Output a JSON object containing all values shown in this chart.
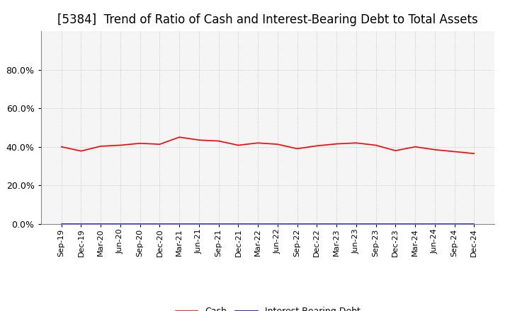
{
  "title": "[5384]  Trend of Ratio of Cash and Interest-Bearing Debt to Total Assets",
  "x_labels": [
    "Sep-19",
    "Dec-19",
    "Mar-20",
    "Jun-20",
    "Sep-20",
    "Dec-20",
    "Mar-21",
    "Jun-21",
    "Sep-21",
    "Dec-21",
    "Mar-22",
    "Jun-22",
    "Sep-22",
    "Dec-22",
    "Mar-23",
    "Jun-23",
    "Sep-23",
    "Dec-23",
    "Mar-24",
    "Jun-24",
    "Sep-24",
    "Dec-24"
  ],
  "cash_values": [
    0.4,
    0.378,
    0.403,
    0.408,
    0.418,
    0.413,
    0.45,
    0.435,
    0.43,
    0.408,
    0.42,
    0.413,
    0.39,
    0.405,
    0.415,
    0.42,
    0.408,
    0.38,
    0.4,
    0.385,
    0.375,
    0.365
  ],
  "debt_values": [
    0.001,
    0.001,
    0.001,
    0.001,
    0.001,
    0.001,
    0.001,
    0.001,
    0.001,
    0.001,
    0.001,
    0.001,
    0.001,
    0.001,
    0.001,
    0.001,
    0.001,
    0.001,
    0.001,
    0.001,
    0.001,
    0.001
  ],
  "cash_color": "#FF0000",
  "debt_color": "#0000CC",
  "background_color": "#FFFFFF",
  "plot_bg_color": "#F5F5F5",
  "grid_color": "#BBBBBB",
  "ylim_min": 0.0,
  "ylim_max": 1.0,
  "yticks": [
    0.0,
    0.2,
    0.4,
    0.6,
    0.8
  ],
  "title_fontsize": 12,
  "title_fontweight": "normal",
  "legend_cash": "Cash",
  "legend_debt": "Interest-Bearing Debt",
  "tick_fontsize": 8,
  "ylabel_fontsize": 9
}
